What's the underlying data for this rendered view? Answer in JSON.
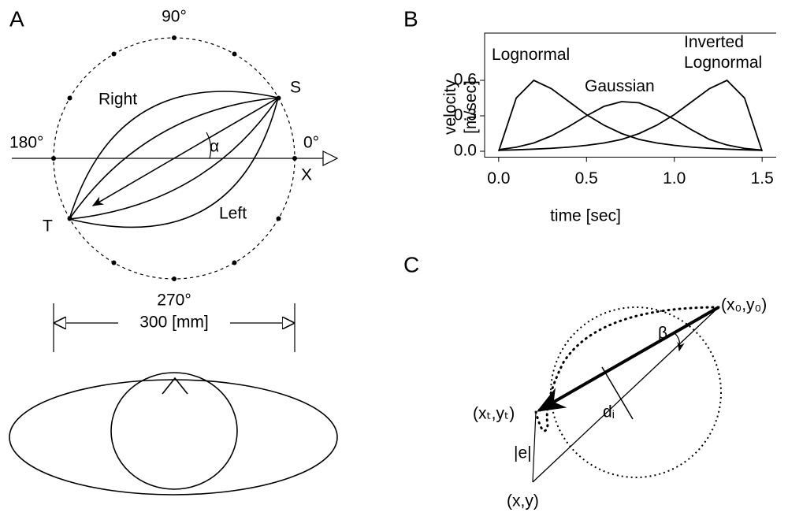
{
  "panel_a": {
    "label": "A",
    "angles": [
      "90°",
      "180°",
      "0°",
      "270°"
    ],
    "start": "S",
    "target": "T",
    "axis": "X",
    "right": "Right",
    "left": "Left",
    "angle_symbol": "α",
    "dimension": "300 [mm]"
  },
  "chart_data": {
    "type": "line",
    "panel_label": "B",
    "xlabel": "time [sec]",
    "ylabel": "velocity [m/sec]",
    "x": [
      0,
      0.1,
      0.2,
      0.3,
      0.4,
      0.5,
      0.6,
      0.7,
      0.8,
      0.9,
      1.0,
      1.1,
      1.2,
      1.3,
      1.4,
      1.5
    ],
    "series": [
      {
        "name": "Lognormal",
        "color": "#000000",
        "values": [
          0,
          0.45,
          0.6,
          0.53,
          0.42,
          0.31,
          0.22,
          0.15,
          0.1,
          0.07,
          0.05,
          0.035,
          0.025,
          0.018,
          0.012,
          0.008
        ]
      },
      {
        "name": "Gaussian",
        "color": "#000000",
        "values": [
          0.014,
          0.034,
          0.07,
          0.13,
          0.21,
          0.3,
          0.38,
          0.42,
          0.41,
          0.35,
          0.27,
          0.18,
          0.1,
          0.053,
          0.024,
          0.01
        ]
      },
      {
        "name": "Inverted Lognormal",
        "color": "#000000",
        "values": [
          0.008,
          0.012,
          0.018,
          0.025,
          0.035,
          0.05,
          0.07,
          0.1,
          0.15,
          0.22,
          0.31,
          0.42,
          0.53,
          0.6,
          0.45,
          0
        ]
      }
    ],
    "xlim": [
      -0.08,
      1.58
    ],
    "ylim": [
      -0.05,
      1.0
    ],
    "xticks": [
      {
        "value": 0,
        "label": "0.0"
      },
      0.5,
      {
        "value": 1,
        "label": "1.0"
      },
      1.5
    ],
    "yticks": [
      {
        "value": 0,
        "label": "0.0"
      },
      0.3,
      0.6
    ]
  },
  "panel_c": {
    "label": "C",
    "start": "(x₀,y₀)",
    "end": "(xₜ,yₜ)",
    "target": "(x,y)",
    "error": "|e|",
    "distance": "dᵢ",
    "angle_symbol": "β"
  }
}
